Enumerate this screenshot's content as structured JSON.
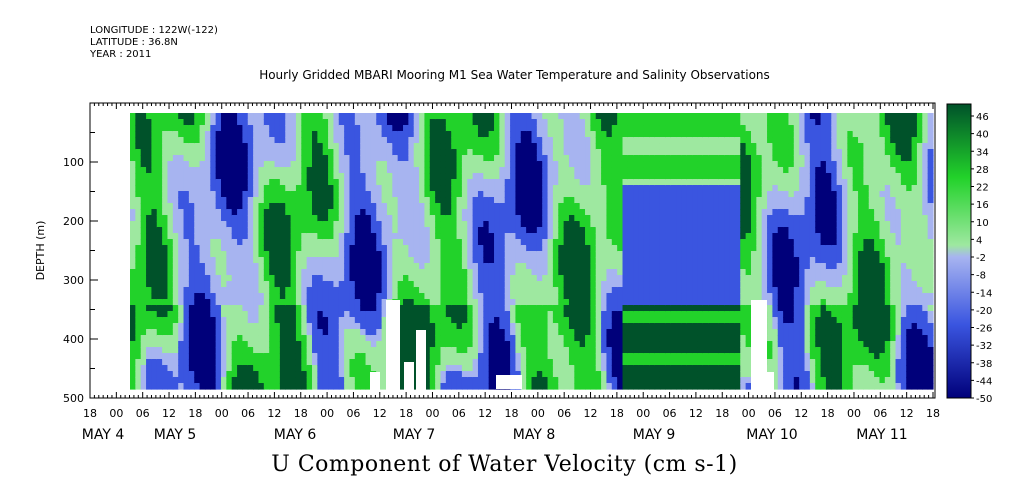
{
  "header": {
    "longitude": "LONGITUDE : 122W(-122)",
    "latitude": "LATITUDE : 36.8N",
    "year": "YEAR : 2011"
  },
  "chart_data": {
    "type": "heatmap",
    "title": "Hourly Gridded MBARI Mooring M1 Sea Water Temperature and Salinity Observations",
    "bottom_title": "U Component of Water Velocity (cm s-1)",
    "ylabel": "DEPTH (m)",
    "ylim": [
      500,
      0
    ],
    "y_ticks": [
      "100",
      "200",
      "300",
      "400",
      "500"
    ],
    "x_hour_ticks": [
      "18",
      "00",
      "06",
      "12",
      "18",
      "00",
      "06",
      "12",
      "18",
      "00",
      "06",
      "12",
      "18",
      "00",
      "06",
      "12",
      "18",
      "00",
      "06",
      "12",
      "18",
      "00",
      "06",
      "12",
      "18",
      "00",
      "06",
      "12",
      "18",
      "00",
      "06",
      "12",
      "18"
    ],
    "x_day_labels": [
      "MAY  4",
      "MAY  5",
      "MAY  6",
      "MAY  7",
      "MAY  8",
      "MAY  9",
      "MAY 10",
      "MAY 11"
    ],
    "colorbar_labels": [
      "46",
      "40",
      "34",
      "28",
      "22",
      "16",
      "10",
      "4",
      "-2",
      "-8",
      "-14",
      "-20",
      "-26",
      "-32",
      "-38",
      "-44",
      "-50"
    ],
    "colorbar_range": [
      -50,
      50
    ],
    "colors": {
      "strong_negative": "#00007a",
      "negative": "#3a55e0",
      "weak_negative": "#a7b4f0",
      "weak_positive": "#9ee8a0",
      "positive": "#22d22a",
      "strong_positive": "#00522a"
    }
  }
}
